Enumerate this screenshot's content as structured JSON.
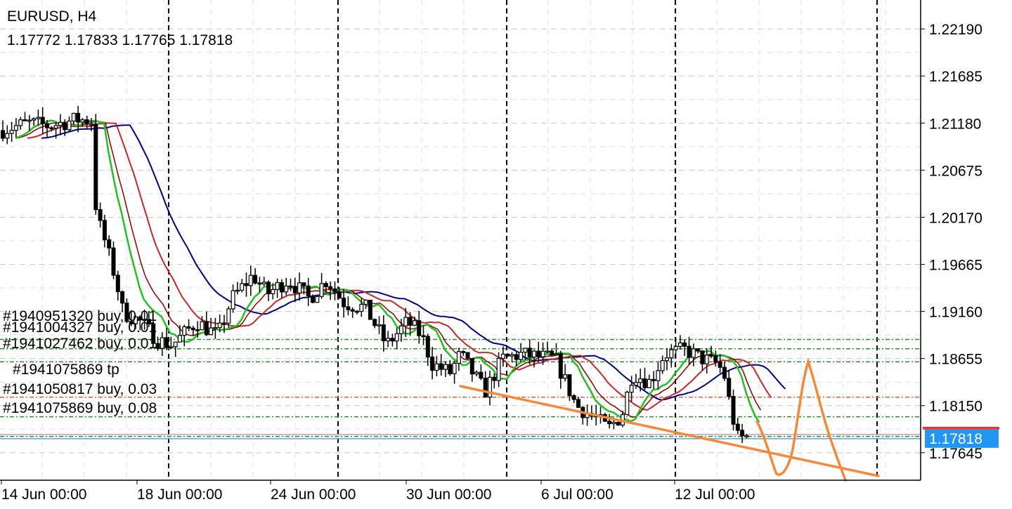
{
  "header": {
    "symbol_timeframe": "EURUSD, H4",
    "ohlc": "1.17772 1.17833 1.17765 1.17818"
  },
  "price_axis": {
    "labels": [
      "1.22190",
      "1.21685",
      "1.21180",
      "1.20675",
      "1.20170",
      "1.19665",
      "1.19160",
      "1.18655",
      "1.18150",
      "1.17645"
    ],
    "current_price": "1.17818",
    "current_price_bg": "#2196f3",
    "ask_line_color": "#e53935"
  },
  "time_axis": {
    "labels": [
      "14 Jun 00:00",
      "18 Jun 00:00",
      "24 Jun 00:00",
      "30 Jun 00:00",
      "6 Jul 00:00",
      "12 Jul 00:00"
    ]
  },
  "orders": [
    {
      "label": "#1940951320 buy, 0.01",
      "price": 1.1886
    },
    {
      "label": "#1941004327 buy, 0.01",
      "price": 1.1876
    },
    {
      "label": "#1941027462 buy, 0.01",
      "price": 1.1862
    },
    {
      "label": "#1941075869 tp",
      "price": 1.1824
    },
    {
      "label": "#1941050817 buy, 0.03",
      "price": 1.1803
    },
    {
      "label": "#1941075869 buy, 0.08",
      "price": 1.1782
    }
  ],
  "indicators": [
    {
      "color": "#000080"
    },
    {
      "color": "#c62828"
    },
    {
      "color": "#8b0000"
    },
    {
      "color": "#22c022"
    }
  ],
  "drawings": {
    "trendline_color": "#f5883a",
    "freehand_color": "#f5883a"
  },
  "chart_data": {
    "type": "candlestick",
    "ylim": [
      1.1735,
      1.225
    ],
    "x_dates": [
      "14 Jun",
      "18 Jun",
      "24 Jun",
      "30 Jun",
      "6 Jul",
      "12 Jul"
    ],
    "close_series": [
      1.2112,
      1.2118,
      1.2108,
      1.204,
      1.1945,
      1.1905,
      1.189,
      1.188,
      1.193,
      1.195,
      1.1935,
      1.194,
      1.195,
      1.192,
      1.19,
      1.187,
      1.185,
      1.184,
      1.1825,
      1.185,
      1.187,
      1.186,
      1.182,
      1.181,
      1.179,
      1.185,
      1.187,
      1.186,
      1.183,
      1.18,
      1.1782
    ]
  }
}
